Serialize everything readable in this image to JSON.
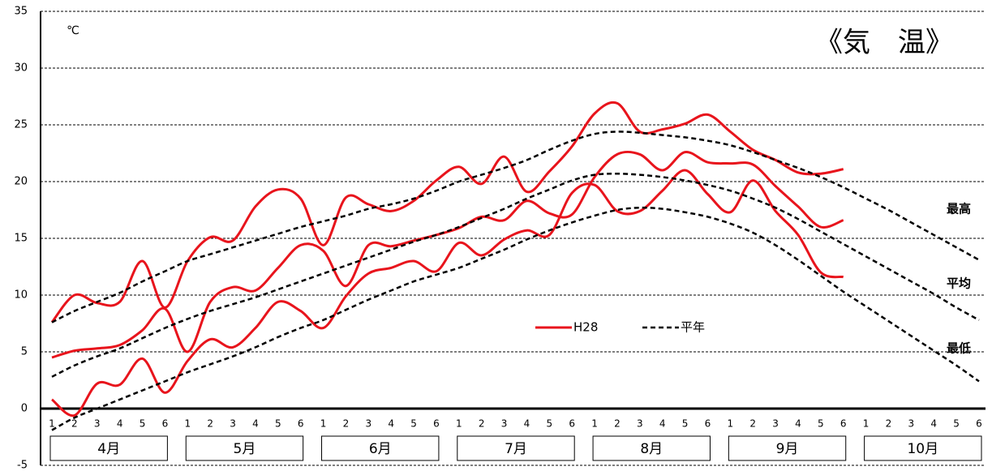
{
  "chart_data": {
    "type": "line",
    "title": "《気　温》",
    "unit": "℃",
    "categories": [
      "1",
      "2",
      "3",
      "4",
      "5",
      "6",
      "1",
      "2",
      "3",
      "4",
      "5",
      "6",
      "1",
      "2",
      "3",
      "4",
      "5",
      "6",
      "1",
      "2",
      "3",
      "4",
      "5",
      "6",
      "1",
      "2",
      "3",
      "4",
      "5",
      "6",
      "1",
      "2",
      "3",
      "4",
      "5",
      "6",
      "1",
      "2",
      "3",
      "4",
      "5",
      "6"
    ],
    "months": [
      "4月",
      "5月",
      "6月",
      "7月",
      "8月",
      "9月",
      "10月"
    ],
    "line_labels": [
      "最高",
      "平均",
      "最低"
    ],
    "ylim": [
      -5,
      35
    ],
    "yticks": [
      -5,
      0,
      5,
      10,
      15,
      20,
      25,
      30,
      35
    ],
    "grid": true,
    "series": [
      {
        "name": "H28",
        "color": "#e8141c",
        "dash": false,
        "values": [
          [
            7.6,
            10.0,
            9.3,
            9.4,
            13.0,
            8.9,
            13.0,
            15.1,
            14.8,
            17.8,
            19.3,
            18.5,
            14.4,
            18.6,
            18.0,
            17.4,
            18.3,
            20.1,
            21.3,
            19.8,
            22.2,
            19.1,
            20.9,
            23.1,
            26.0,
            26.9,
            24.4,
            24.6,
            25.1,
            25.9,
            24.4,
            22.8,
            21.9,
            20.8,
            20.7,
            21.1,
            null,
            null,
            null,
            null,
            null,
            null
          ],
          [
            4.5,
            5.1,
            5.3,
            5.6,
            6.9,
            8.8,
            5.0,
            9.4,
            10.7,
            10.4,
            12.4,
            14.4,
            13.9,
            10.8,
            14.4,
            14.3,
            14.8,
            15.3,
            15.9,
            16.9,
            16.6,
            18.3,
            17.2,
            17.1,
            20.4,
            22.4,
            22.4,
            21.0,
            22.6,
            21.7,
            21.6,
            21.5,
            19.6,
            17.8,
            16.0,
            16.6,
            null,
            null,
            null,
            null,
            null,
            null
          ],
          [
            0.8,
            -0.6,
            2.2,
            2.1,
            4.4,
            1.4,
            4.2,
            6.1,
            5.4,
            7.1,
            9.4,
            8.6,
            7.1,
            9.9,
            11.9,
            12.4,
            13.0,
            12.1,
            14.6,
            13.5,
            14.9,
            15.7,
            15.3,
            19.0,
            19.7,
            17.4,
            17.4,
            19.2,
            21.0,
            18.9,
            17.3,
            20.1,
            17.4,
            15.3,
            12.0,
            11.6,
            null,
            null,
            null,
            null,
            null,
            null
          ]
        ]
      },
      {
        "name": "平年",
        "color": "#000000",
        "dash": true,
        "values": [
          [
            7.6,
            8.6,
            9.4,
            10.2,
            11.2,
            12.1,
            13.0,
            13.6,
            14.2,
            14.8,
            15.4,
            16.0,
            16.5,
            17.0,
            17.6,
            18.0,
            18.5,
            19.2,
            20.0,
            20.6,
            21.2,
            21.9,
            22.8,
            23.6,
            24.2,
            24.4,
            24.3,
            24.1,
            23.9,
            23.6,
            23.2,
            22.6,
            21.9,
            21.2,
            20.4,
            19.5,
            18.5,
            17.5,
            16.4,
            15.3,
            14.2,
            13.1
          ],
          [
            2.8,
            3.8,
            4.6,
            5.3,
            6.2,
            7.1,
            7.9,
            8.6,
            9.2,
            9.8,
            10.5,
            11.2,
            11.9,
            12.6,
            13.3,
            14.0,
            14.7,
            15.3,
            16.0,
            16.8,
            17.6,
            18.5,
            19.3,
            20.1,
            20.6,
            20.7,
            20.6,
            20.4,
            20.1,
            19.7,
            19.2,
            18.5,
            17.7,
            16.7,
            15.6,
            14.5,
            13.4,
            12.3,
            11.2,
            10.1,
            8.9,
            7.8
          ],
          [
            -1.9,
            -0.8,
            0.0,
            0.8,
            1.6,
            2.4,
            3.2,
            3.9,
            4.6,
            5.4,
            6.3,
            7.1,
            7.8,
            8.7,
            9.6,
            10.4,
            11.2,
            11.8,
            12.4,
            13.2,
            14.0,
            14.9,
            15.7,
            16.4,
            17.0,
            17.5,
            17.7,
            17.6,
            17.3,
            16.9,
            16.3,
            15.5,
            14.4,
            13.1,
            11.7,
            10.3,
            9.0,
            7.7,
            6.4,
            5.1,
            3.8,
            2.4
          ]
        ]
      }
    ]
  }
}
